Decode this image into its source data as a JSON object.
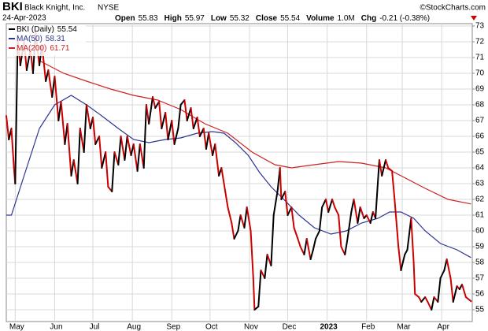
{
  "header": {
    "symbol": "BKI",
    "company": "Black Knight, Inc.",
    "exchange": "NYSE",
    "credit": "©StockCharts.com",
    "date": "24-Apr-2023",
    "quote": [
      {
        "label": "Open",
        "value": 55.83
      },
      {
        "label": "High",
        "value": 55.97
      },
      {
        "label": "Low",
        "value": 55.32
      },
      {
        "label": "Close",
        "value": 55.54
      },
      {
        "label": "Volume",
        "value": "1.0M"
      },
      {
        "label": "Chg",
        "value": "-0.21 (-0.38%)"
      }
    ]
  },
  "chart_data": {
    "type": "line",
    "grid": true,
    "legend": "top-left",
    "xlim": [
      0,
      366
    ],
    "xticks": [
      {
        "value": 7,
        "label": "May"
      },
      {
        "value": 38,
        "label": "Jun"
      },
      {
        "value": 68,
        "label": "Jul"
      },
      {
        "value": 99,
        "label": "Aug"
      },
      {
        "value": 130,
        "label": "Sep"
      },
      {
        "value": 160,
        "label": "Oct"
      },
      {
        "value": 191,
        "label": "Nov"
      },
      {
        "value": 221,
        "label": "Dec"
      },
      {
        "value": 252,
        "label": "2023"
      },
      {
        "value": 283,
        "label": "Feb"
      },
      {
        "value": 311,
        "label": "Mar"
      },
      {
        "value": 342,
        "label": "Apr"
      }
    ],
    "ylim": [
      54.25,
      73.15
    ],
    "yticks": [
      55,
      56,
      57,
      58,
      59,
      60,
      61,
      62,
      63,
      64,
      65,
      66,
      67,
      68,
      69,
      70,
      71,
      72,
      73
    ],
    "series": [
      {
        "name": "BKI (Daily)",
        "color": "#000000",
        "down_color": "#cc0000",
        "x": [
          0,
          2,
          4,
          6,
          7,
          9,
          11,
          14,
          16,
          19,
          21,
          23,
          26,
          28,
          31,
          33,
          36,
          38,
          41,
          43,
          46,
          48,
          51,
          53,
          56,
          58,
          61,
          63,
          66,
          68,
          70,
          73,
          75,
          78,
          80,
          83,
          85,
          88,
          90,
          93,
          95,
          98,
          100,
          103,
          105,
          108,
          110,
          112,
          115,
          117,
          120,
          122,
          125,
          127,
          130,
          132,
          135,
          137,
          140,
          142,
          145,
          147,
          150,
          152,
          155,
          157,
          159,
          162,
          164,
          167,
          169,
          172,
          174,
          177,
          179,
          182,
          184,
          187,
          189,
          192,
          194,
          195,
          198,
          200,
          203,
          205,
          208,
          210,
          213,
          215,
          216,
          219,
          221,
          224,
          226,
          229,
          231,
          234,
          236,
          239,
          241,
          243,
          246,
          248,
          251,
          253,
          256,
          258,
          261,
          263,
          266,
          268,
          271,
          273,
          276,
          278,
          281,
          283,
          286,
          288,
          290,
          293,
          295,
          298,
          300,
          303,
          305,
          308,
          310,
          313,
          315,
          318,
          320,
          321,
          324,
          326,
          329,
          331,
          334,
          336,
          339,
          341,
          344,
          346,
          349,
          351,
          354,
          356,
          358,
          361,
          365
        ],
        "values": [
          67.3,
          65.8,
          66.5,
          64.0,
          63.0,
          72.3,
          70.5,
          72.0,
          70.2,
          71.5,
          70.0,
          72.6,
          70.5,
          71.8,
          69.5,
          70.2,
          68.5,
          69.8,
          67.0,
          68.2,
          65.5,
          66.8,
          63.5,
          64.5,
          63.0,
          66.5,
          65.0,
          68.0,
          66.5,
          67.2,
          65.5,
          66.0,
          64.0,
          65.0,
          62.8,
          62.5,
          65.0,
          64.2,
          66.0,
          64.5,
          66.0,
          64.8,
          65.5,
          63.8,
          65.5,
          64.0,
          68.0,
          66.8,
          68.5,
          67.8,
          68.2,
          66.5,
          67.5,
          65.8,
          67.0,
          65.5,
          66.5,
          68.0,
          68.3,
          67.0,
          67.8,
          66.5,
          67.2,
          66.0,
          66.5,
          65.2,
          66.2,
          64.8,
          65.5,
          63.5,
          64.0,
          62.5,
          61.5,
          60.5,
          59.5,
          60.0,
          61.0,
          60.2,
          61.5,
          60.0,
          57.0,
          55.0,
          55.2,
          57.5,
          57.0,
          58.5,
          57.8,
          61.0,
          62.5,
          64.0,
          62.0,
          62.5,
          61.0,
          61.5,
          60.2,
          59.5,
          59.0,
          58.5,
          59.5,
          58.2,
          58.8,
          59.5,
          60.0,
          61.5,
          62.0,
          61.2,
          62.0,
          61.5,
          61.0,
          59.0,
          58.5,
          59.5,
          61.2,
          62.0,
          60.5,
          61.5,
          60.8,
          61.0,
          60.5,
          61.2,
          60.8,
          64.5,
          63.5,
          64.5,
          64.0,
          63.8,
          62.0,
          59.0,
          57.5,
          58.5,
          58.8,
          60.8,
          58.0,
          56.0,
          55.8,
          55.5,
          55.8,
          55.5,
          55.0,
          55.8,
          55.5,
          57.0,
          57.5,
          58.2,
          57.0,
          55.5,
          56.5,
          56.3,
          56.6,
          55.8,
          55.54
        ]
      },
      {
        "name": "MA(50)",
        "color": "#2c3590",
        "x": [
          0,
          4,
          14,
          26,
          38,
          51,
          63,
          75,
          88,
          100,
          112,
          125,
          137,
          150,
          162,
          171,
          180,
          190,
          199,
          208,
          218,
          230,
          242,
          255,
          267,
          279,
          292,
          301,
          310,
          320,
          329,
          341,
          354,
          365
        ],
        "values": [
          61.0,
          61.0,
          63.5,
          66.5,
          68.0,
          68.6,
          68.0,
          67.3,
          66.5,
          65.8,
          65.6,
          65.8,
          65.9,
          66.2,
          66.3,
          66.2,
          65.6,
          64.8,
          63.7,
          62.8,
          62.0,
          61.0,
          60.2,
          59.8,
          60.0,
          60.5,
          60.8,
          61.2,
          61.2,
          60.8,
          60.0,
          59.2,
          58.8,
          58.31
        ]
      },
      {
        "name": "MA(200)",
        "color": "#cc2222",
        "x": [
          26,
          45,
          63,
          82,
          100,
          119,
          137,
          156,
          174,
          193,
          211,
          224,
          242,
          261,
          279,
          298,
          310,
          329,
          347,
          365
        ],
        "values": [
          70.8,
          70.0,
          69.5,
          69.0,
          68.6,
          68.3,
          67.7,
          66.8,
          66.2,
          65.0,
          64.2,
          64.0,
          64.2,
          64.4,
          64.3,
          64.0,
          63.5,
          62.7,
          62.0,
          61.71
        ]
      }
    ]
  }
}
